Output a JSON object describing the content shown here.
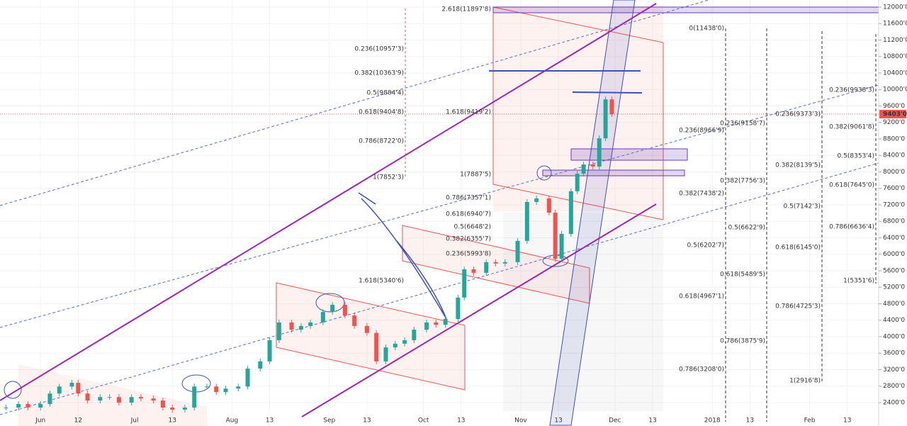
{
  "chart_data": {
    "type": "candlestick",
    "x": [
      -11,
      -7,
      -4,
      0,
      3,
      6,
      10,
      12,
      15,
      19,
      22,
      25,
      29,
      32,
      36,
      39,
      42,
      46,
      49,
      53,
      56,
      59,
      63,
      66,
      70,
      73,
      76,
      80,
      83,
      86,
      90,
      93,
      97,
      100,
      104,
      107,
      110,
      113,
      116,
      119,
      123,
      126,
      129,
      133,
      135,
      138,
      142,
      145,
      148,
      152,
      155,
      158,
      162,
      164,
      166,
      169,
      171,
      173,
      176,
      178,
      180,
      182
    ],
    "values": [
      2280,
      2365,
      2280,
      2365,
      2620,
      2790,
      2880,
      2620,
      2450,
      2535,
      2535,
      2400,
      2535,
      2500,
      2450,
      2280,
      2230,
      2280,
      2790,
      2790,
      2655,
      2740,
      2790,
      3225,
      3400,
      3915,
      4345,
      4170,
      4260,
      4345,
      4600,
      4775,
      4515,
      4260,
      4090,
      3400,
      3740,
      3830,
      3915,
      4170,
      4345,
      4290,
      4430,
      4950,
      5635,
      5550,
      5810,
      5775,
      5810,
      6325,
      7270,
      7355,
      7010,
      5890,
      6495,
      7530,
      7955,
      8180,
      8130,
      8815,
      9760,
      9403
    ],
    "up_color": "#26a69a",
    "down_color": "#ef5350",
    "xlim": [
      -12.9,
      267
    ],
    "ylim": [
      1832,
      12172
    ],
    "xticks": [
      {
        "value": 0,
        "label": "Jun"
      },
      12,
      {
        "value": 30,
        "label": "Jul"
      },
      {
        "value": 42,
        "label": "13"
      },
      {
        "value": 61,
        "label": "Aug"
      },
      {
        "value": 73,
        "label": "13"
      },
      {
        "value": 92,
        "label": "Sep"
      },
      {
        "value": 104,
        "label": "13"
      },
      {
        "value": 122,
        "label": "Oct"
      },
      {
        "value": 134,
        "label": "13"
      },
      {
        "value": 153,
        "label": "Nov"
      },
      {
        "value": 165,
        "label": "13"
      },
      {
        "value": 183,
        "label": "Dec"
      },
      {
        "value": 195,
        "label": "13"
      },
      {
        "value": 214,
        "label": "2018"
      },
      {
        "value": 226,
        "label": "13"
      },
      {
        "value": 245,
        "label": "Feb"
      },
      {
        "value": 257,
        "label": "13"
      }
    ],
    "yticks": [
      {
        "value": 2400,
        "label": "2400'0"
      },
      {
        "value": 2800,
        "label": "2800'0"
      },
      {
        "value": 3200,
        "label": "3200'0"
      },
      {
        "value": 3600,
        "label": "3600'0"
      },
      {
        "value": 4000,
        "label": "4000'0"
      },
      {
        "value": 4400,
        "label": "4400'0"
      },
      {
        "value": 4800,
        "label": "4800'0"
      },
      {
        "value": 5200,
        "label": "5200'0"
      },
      {
        "value": 5600,
        "label": "5600'0"
      },
      {
        "value": 6000,
        "label": "6000'0"
      },
      {
        "value": 6400,
        "label": "6400'0"
      },
      {
        "value": 6800,
        "label": "6800'0"
      },
      {
        "value": 7200,
        "label": "7200'0"
      },
      {
        "value": 7600,
        "label": "7600'0"
      },
      {
        "value": 8000,
        "label": "8000'0"
      },
      {
        "value": 8400,
        "label": "8400'0"
      },
      {
        "value": 8800,
        "label": "8800'0"
      },
      {
        "value": 9200,
        "label": "9200'0"
      },
      {
        "value": 9600,
        "label": "9600'0"
      },
      {
        "value": 10000,
        "label": "10000'0"
      },
      {
        "value": 10400,
        "label": "10400'0"
      },
      {
        "value": 10800,
        "label": "10800'0"
      },
      {
        "value": 11200,
        "label": "11200'0"
      },
      {
        "value": 11600,
        "label": "11600'0"
      },
      {
        "value": 12000,
        "label": "12000'0"
      }
    ],
    "last_price": {
      "value": 9403.0,
      "label": "9403'0"
    },
    "grid": true,
    "annotations": [
      "0.236(10957'3)",
      "0.382(10363'9)",
      "0.5(9884'4)",
      "0.618(9404'8)",
      "0.786(8722'0)",
      "1(7852'3)",
      "1.618(5340'6)",
      "2.618(11897'8)",
      "1.618(9419'2)",
      "1(7887'5)",
      "0.786(7357'1)",
      "0.618(6940'7)",
      "0.5(6648'2)",
      "0.382(6355'7)",
      "0.236(5993'8)",
      "0(11438'0)",
      "0.236(8966'9)",
      "0.382(7438'2)",
      "0.5(6202'7)",
      "0.618(4967'1)",
      "0.786(3208'0)",
      "0.236(9158'7)",
      "0.382(7756'3)",
      "0.5(6622'9)",
      "0.618(5489'5)",
      "0.786(3875'9)",
      "0.236(9373'3)",
      "0.382(8139'5)",
      "0.5(7142'3)",
      "0.618(6145'0)",
      "0.786(4725'3)",
      "1(2916'8)",
      "0.236(9938'3)",
      "0.382(9061'8)",
      "0.5(8353'4)",
      "0.618(7645'0)",
      "0.786(6636'4)",
      "1(5351'6)"
    ]
  }
}
